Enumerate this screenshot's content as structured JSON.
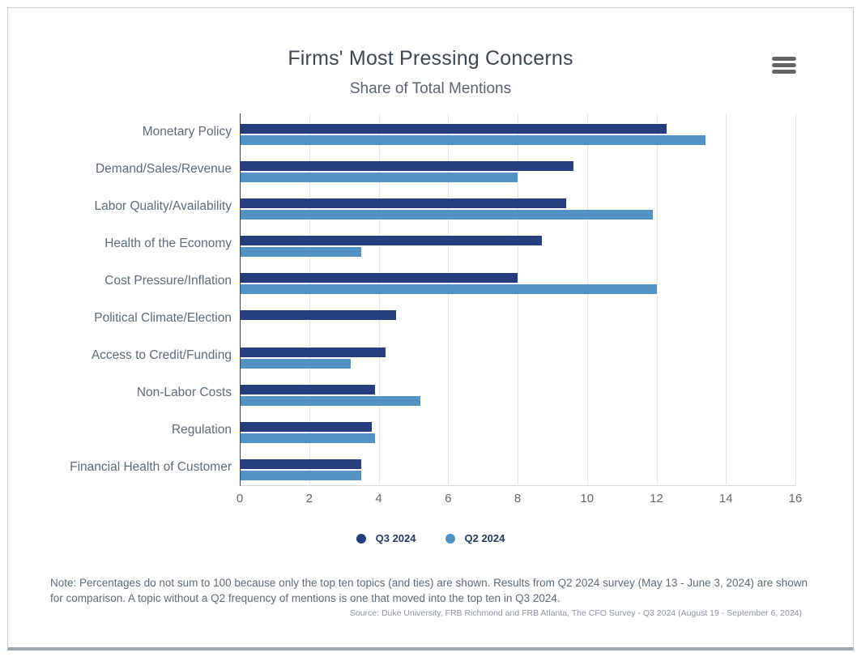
{
  "header": {
    "title": "Firms' Most Pressing Concerns",
    "subtitle": "Share of Total Mentions"
  },
  "menu_icon": "hamburger-menu",
  "chart_data": {
    "type": "bar",
    "orientation": "horizontal",
    "title": "Firms' Most Pressing Concerns",
    "subtitle": "Share of Total Mentions",
    "categories": [
      "Monetary Policy",
      "Demand/Sales/Revenue",
      "Labor Quality/Availability",
      "Health of the Economy",
      "Cost Pressure/Inflation",
      "Political Climate/Election",
      "Access to Credit/Funding",
      "Non-Labor Costs",
      "Regulation",
      "Financial Health of Customer"
    ],
    "series": [
      {
        "name": "Q3 2024",
        "color": "#263E7E",
        "values": [
          12.3,
          9.6,
          9.4,
          8.7,
          8.0,
          4.5,
          4.2,
          3.9,
          3.8,
          3.5
        ]
      },
      {
        "name": "Q2 2024",
        "color": "#5291C4",
        "values": [
          13.4,
          8.0,
          11.9,
          3.5,
          12.0,
          null,
          3.2,
          5.2,
          3.9,
          3.5
        ]
      }
    ],
    "xlim": [
      0,
      16
    ],
    "x_ticks": [
      0,
      2,
      4,
      6,
      8,
      10,
      12,
      14,
      16
    ],
    "xlabel": "",
    "ylabel": "",
    "grid": true,
    "legend_position": "bottom"
  },
  "footer": {
    "note": "Note: Percentages do not sum to 100 because only the top ten topics (and ties) are shown. Results from Q2 2024 survey (May 13 - June 3, 2024) are shown for comparison. A topic without a Q2 frequency of mentions is one that moved into the top ten in Q3 2024.",
    "source": "Source: Duke University, FRB Richmond and FRB Atlanta, The CFO Survey - Q3 2024 (August 19 - September 6, 2024)"
  }
}
